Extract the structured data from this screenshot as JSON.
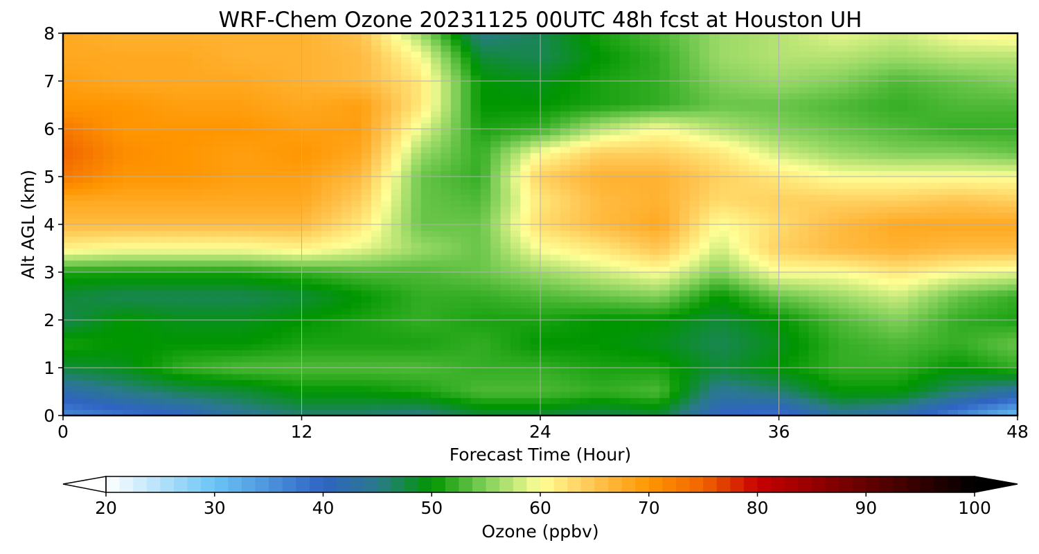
{
  "chart_data": {
    "type": "heatmap",
    "title": "WRF-Chem Ozone  20231125 00UTC 48h fcst at Houston UH",
    "xlabel": "Forecast Time (Hour)",
    "ylabel": "Alt AGL (km)",
    "xlim": [
      0,
      48
    ],
    "ylim": [
      0,
      8
    ],
    "x_ticks": [
      "0",
      "12",
      "24",
      "36",
      "48"
    ],
    "y_ticks": [
      "0",
      "1",
      "2",
      "3",
      "4",
      "5",
      "6",
      "7",
      "8"
    ],
    "grid": true,
    "x_grid_hours": [
      0,
      3,
      6,
      9,
      12,
      15,
      18,
      21,
      24,
      27,
      30,
      33,
      36,
      39,
      42,
      45,
      48
    ],
    "y_grid_km": [
      0,
      0.5,
      1.0,
      1.5,
      2.0,
      2.5,
      3.0,
      3.5,
      4.0,
      4.5,
      5.0,
      5.5,
      6.0,
      6.5,
      7.0,
      7.5,
      8.0
    ],
    "ozone_ppbv": [
      [
        36,
        38,
        40,
        44,
        46,
        46,
        45,
        48,
        48,
        47,
        48,
        40,
        38,
        44,
        42,
        36,
        30
      ],
      [
        42,
        45,
        47,
        48,
        50,
        50,
        51,
        53,
        53,
        52,
        53,
        44,
        46,
        50,
        50,
        46,
        43
      ],
      [
        48,
        49,
        52,
        53,
        53,
        53,
        53,
        52,
        52,
        51,
        51,
        48,
        50,
        52,
        52,
        50,
        52
      ],
      [
        51,
        50,
        50,
        50,
        51,
        51,
        51,
        52,
        50,
        50,
        49,
        47,
        49,
        52,
        53,
        52,
        54
      ],
      [
        47,
        50,
        49,
        49,
        50,
        51,
        52,
        51,
        51,
        50,
        50,
        48,
        50,
        53,
        55,
        52,
        51
      ],
      [
        48,
        47,
        47,
        47,
        48,
        50,
        52,
        52,
        53,
        54,
        55,
        50,
        54,
        56,
        58,
        54,
        52
      ],
      [
        51,
        51,
        51,
        51,
        52,
        53,
        53,
        54,
        56,
        58,
        60,
        55,
        60,
        60,
        62,
        60,
        59
      ],
      [
        61,
        60,
        60,
        60,
        61,
        59,
        56,
        54,
        60,
        62,
        65,
        58,
        64,
        66,
        67,
        66,
        66
      ],
      [
        66,
        66,
        66,
        66,
        66,
        62,
        54,
        54,
        63,
        66,
        68,
        60,
        63,
        66,
        68,
        68,
        68
      ],
      [
        68,
        68,
        68,
        68,
        68,
        64,
        54,
        53,
        62,
        66,
        67,
        63,
        64,
        64,
        64,
        65,
        64
      ],
      [
        73,
        70,
        70,
        69,
        69,
        66,
        54,
        52,
        64,
        67,
        67,
        64,
        62,
        60,
        60,
        60,
        60
      ],
      [
        75,
        71,
        70,
        69,
        70,
        68,
        56,
        52,
        60,
        64,
        64,
        62,
        58,
        56,
        55,
        55,
        54
      ],
      [
        73,
        70,
        70,
        70,
        69,
        69,
        59,
        51,
        52,
        57,
        60,
        57,
        55,
        54,
        53,
        52,
        52
      ],
      [
        70,
        70,
        69,
        69,
        68,
        69,
        62,
        50,
        50,
        51,
        52,
        54,
        54,
        53,
        52,
        53,
        53
      ],
      [
        69,
        68,
        68,
        68,
        67,
        66,
        62,
        50,
        49,
        51,
        52,
        55,
        56,
        55,
        53,
        54,
        55
      ],
      [
        68,
        68,
        68,
        67,
        67,
        66,
        60,
        48,
        47,
        50,
        52,
        56,
        57,
        57,
        56,
        57,
        57
      ],
      [
        68,
        67,
        67,
        67,
        67,
        65,
        56,
        45,
        47,
        51,
        53,
        56,
        57,
        59,
        58,
        60,
        61
      ]
    ],
    "colorbar": {
      "label": "Ozone  (ppbv)",
      "min": 20,
      "max": 100,
      "ticks": [
        "20",
        "30",
        "40",
        "50",
        "60",
        "70",
        "80",
        "90",
        "100"
      ],
      "extend": "both",
      "stops": [
        {
          "v": 20,
          "c": "#ffffff"
        },
        {
          "v": 30,
          "c": "#6ac4f5"
        },
        {
          "v": 40,
          "c": "#2f63c4"
        },
        {
          "v": 45,
          "c": "#2a7a8a"
        },
        {
          "v": 50,
          "c": "#009600"
        },
        {
          "v": 55,
          "c": "#82d05a"
        },
        {
          "v": 60,
          "c": "#ffff96"
        },
        {
          "v": 65,
          "c": "#ffc450"
        },
        {
          "v": 70,
          "c": "#ff9600"
        },
        {
          "v": 75,
          "c": "#f06400"
        },
        {
          "v": 80,
          "c": "#c80000"
        },
        {
          "v": 90,
          "c": "#640000"
        },
        {
          "v": 100,
          "c": "#000000"
        }
      ]
    }
  }
}
